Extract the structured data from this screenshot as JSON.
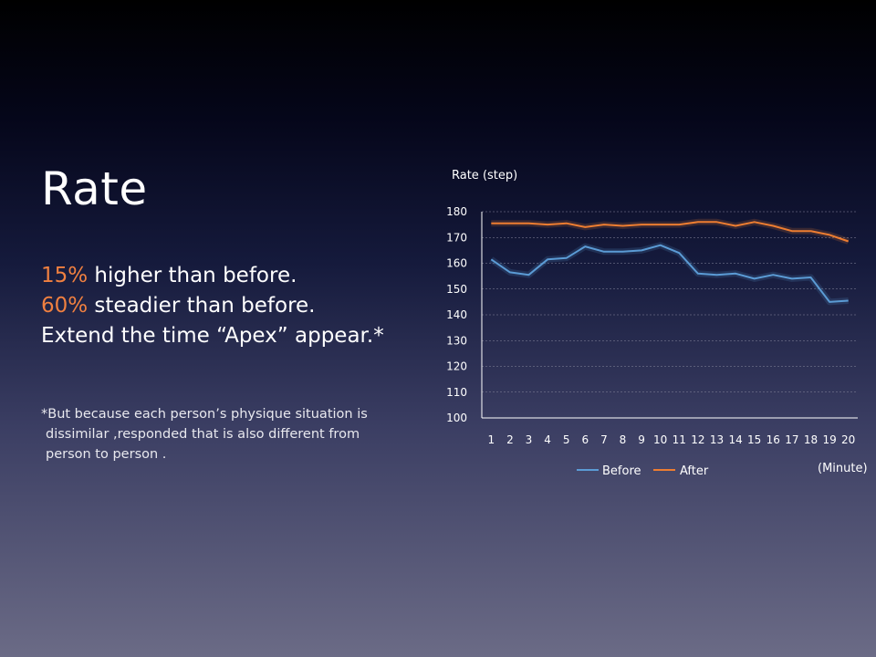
{
  "slide": {
    "title": "Rate",
    "bullets": [
      {
        "highlight": "15%",
        "text": " higher than before."
      },
      {
        "highlight": "60%",
        "text": " steadier than before."
      },
      {
        "highlight": "",
        "text": "Extend the time “Apex” appear.*"
      }
    ],
    "footnote_lines": [
      "*But because each person’s physique situation is",
      "dissimilar ,responded that is also different from",
      "person to person ."
    ],
    "colors": {
      "highlight": "#f08040"
    }
  },
  "chart_data": {
    "type": "line",
    "ylabel": "Rate (step)",
    "xlabel": "(Minute)",
    "x": [
      1,
      2,
      3,
      4,
      5,
      6,
      7,
      8,
      9,
      10,
      11,
      12,
      13,
      14,
      15,
      16,
      17,
      18,
      19,
      20
    ],
    "ylim": [
      100,
      180
    ],
    "yticks": [
      100,
      110,
      120,
      130,
      140,
      150,
      160,
      170,
      180
    ],
    "grid": true,
    "legend": "bottom",
    "series": [
      {
        "name": "Before",
        "color": "#5b9bd5",
        "values": [
          161.5,
          156.5,
          155.5,
          161.5,
          162,
          166.5,
          164.5,
          164.5,
          165,
          167,
          164,
          156,
          155.5,
          156,
          154,
          155.5,
          154,
          154.5,
          145,
          145.5
        ]
      },
      {
        "name": "After",
        "color": "#ed7d31",
        "values": [
          175.5,
          175.5,
          175.5,
          175,
          175.5,
          174,
          175,
          174.5,
          175,
          175,
          175,
          176,
          176,
          174.5,
          176,
          174.5,
          172.5,
          172.5,
          171,
          168.5
        ]
      }
    ]
  }
}
